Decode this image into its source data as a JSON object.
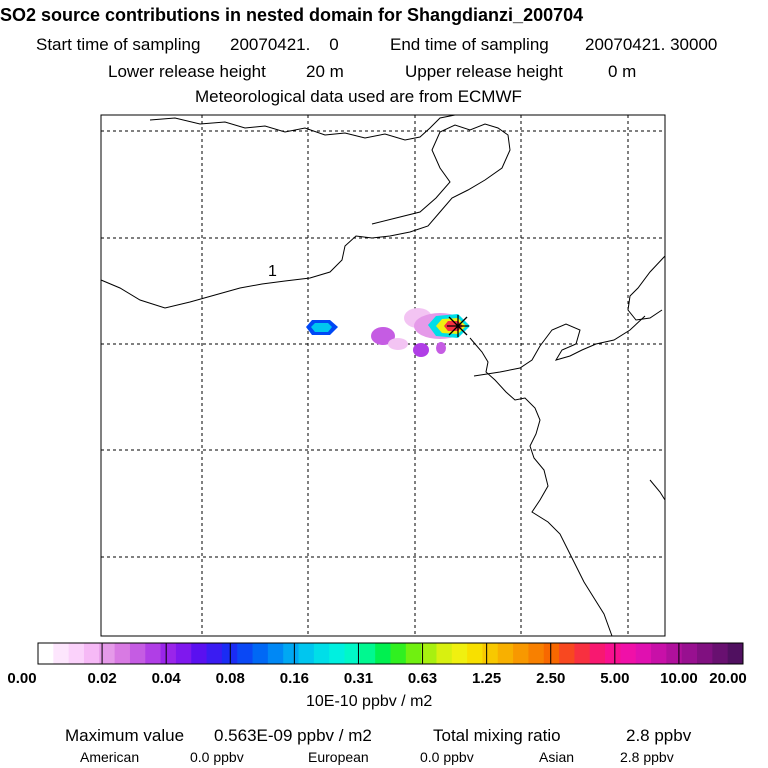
{
  "title": "SO2 source contributions in nested domain for Shangdianzi_200704",
  "sampling": {
    "start_label": "Start time of sampling",
    "start_value": "20070421.    0",
    "end_label": "End time of sampling",
    "end_value": "20070421. 30000"
  },
  "release": {
    "lower_label": "Lower release height",
    "lower_value": "20 m",
    "upper_label": "Upper release height",
    "upper_value": "0 m"
  },
  "meteo_line": "Meteorological data used are from ECMWF",
  "map": {
    "contour_label": "1",
    "station": "Shangdianzi"
  },
  "colorbar": {
    "tick_labels": [
      "0.00",
      "0.02",
      "0.04",
      "0.08",
      "0.16",
      "0.31",
      "0.63",
      "1.25",
      "2.50",
      "5.00",
      "10.00",
      "20.00"
    ],
    "colors": [
      "#ffffff",
      "#fde6fd",
      "#fbd2fb",
      "#f6b9f6",
      "#e59ae9",
      "#d87ae3",
      "#c55ce3",
      "#b03ee6",
      "#9a25ea",
      "#7f18ee",
      "#5a10f0",
      "#3a1cf2",
      "#1a2cf4",
      "#0a48f5",
      "#0068f5",
      "#0088f5",
      "#00a8f3",
      "#00c6ef",
      "#00dee8",
      "#00f0e0",
      "#00f8c8",
      "#00f890",
      "#00f050",
      "#30f020",
      "#70f010",
      "#a8f010",
      "#d8f010",
      "#f0f010",
      "#f8e000",
      "#f8c800",
      "#f8b000",
      "#f89800",
      "#f88000",
      "#f86800",
      "#f84820",
      "#f83040",
      "#f81870",
      "#f81090",
      "#f010a8",
      "#e010b0",
      "#c810a8",
      "#b0109c",
      "#981090",
      "#801080",
      "#681070",
      "#501060"
    ],
    "units": "10E-10 ppbv / m2"
  },
  "stats": {
    "max_label": "Maximum value",
    "max_value": "0.563E-09 ppbv / m2",
    "total_label": "Total mixing ratio",
    "total_value": "2.8 ppbv",
    "american_label": "American",
    "american_value": "0.0 ppbv",
    "european_label": "European",
    "european_value": "0.0 ppbv",
    "asian_label": "Asian",
    "asian_value": "2.8 ppbv"
  }
}
